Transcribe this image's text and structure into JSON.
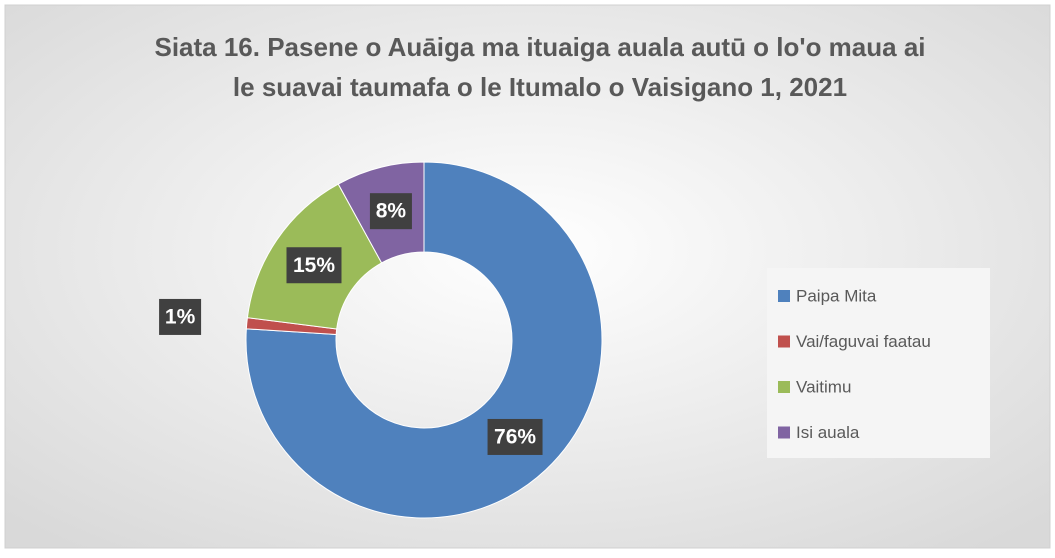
{
  "chart_data": {
    "type": "donut",
    "title": [
      "Siata 16. Pasene o Auāiga ma ituaiga auala autū o lo'o maua ai",
      "le suavai taumafa o le Itumalo o Vaisigano 1, 2021"
    ],
    "categories": [
      "Paipa Mita",
      "Vai/faguvai faatau",
      "Vaitimu",
      "Isi auala"
    ],
    "values": [
      76,
      1,
      15,
      8
    ],
    "value_labels": [
      "76%",
      "1%",
      "15%",
      "8%"
    ],
    "colors": [
      "#4f81bd",
      "#c0504d",
      "#9bbb59",
      "#8064a2"
    ],
    "legend": "right"
  }
}
